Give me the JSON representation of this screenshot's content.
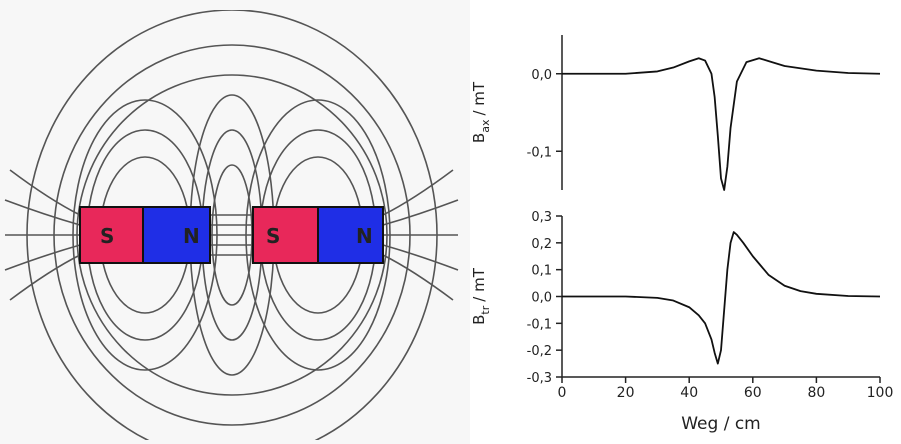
{
  "diagram": {
    "magnets": [
      {
        "south": "S",
        "north": "N"
      },
      {
        "south": "S",
        "north": "N"
      }
    ]
  },
  "chart_data": [
    {
      "type": "line",
      "ylabel": {
        "symbol": "B",
        "subscript": "ax",
        "unit": "/ mT"
      },
      "xlim": [
        0,
        100
      ],
      "ylim": [
        -0.15,
        0.05
      ],
      "yticks": [
        {
          "value": 0,
          "label": "0,0"
        },
        {
          "value": -0.1,
          "label": "-0,1"
        }
      ],
      "x": [
        0,
        10,
        20,
        30,
        35,
        40,
        43,
        45,
        47,
        48,
        49,
        50,
        51,
        52,
        53,
        55,
        58,
        62,
        66,
        70,
        80,
        90,
        100
      ],
      "series": [
        {
          "color": "#111111",
          "values": [
            0,
            0,
            0,
            0.003,
            0.008,
            0.016,
            0.02,
            0.017,
            0.0,
            -0.03,
            -0.08,
            -0.135,
            -0.15,
            -0.12,
            -0.07,
            -0.01,
            0.015,
            0.02,
            0.015,
            0.01,
            0.004,
            0.001,
            0
          ]
        }
      ]
    },
    {
      "type": "line",
      "ylabel": {
        "symbol": "B",
        "subscript": "tr",
        "unit": "/ mT"
      },
      "xlabel": "Weg / cm",
      "xlim": [
        0,
        100
      ],
      "ylim": [
        -0.3,
        0.3
      ],
      "xticks": [
        0,
        20,
        40,
        60,
        80,
        100
      ],
      "yticks": [
        {
          "value": 0.3,
          "label": "0,3"
        },
        {
          "value": 0.2,
          "label": "0,2"
        },
        {
          "value": 0.1,
          "label": "0,1"
        },
        {
          "value": 0,
          "label": "0,0"
        },
        {
          "value": -0.1,
          "label": "-0,1"
        },
        {
          "value": -0.2,
          "label": "-0,2"
        },
        {
          "value": -0.3,
          "label": "-0,3"
        }
      ],
      "x": [
        0,
        10,
        20,
        30,
        35,
        40,
        43,
        45,
        47,
        48,
        49,
        50,
        51,
        52,
        53,
        54,
        55,
        57,
        60,
        65,
        70,
        75,
        80,
        90,
        100
      ],
      "series": [
        {
          "color": "#111111",
          "values": [
            0,
            0,
            0,
            -0.005,
            -0.015,
            -0.04,
            -0.07,
            -0.1,
            -0.16,
            -0.21,
            -0.25,
            -0.2,
            -0.05,
            0.1,
            0.2,
            0.24,
            0.23,
            0.2,
            0.15,
            0.08,
            0.04,
            0.02,
            0.01,
            0.002,
            0
          ]
        }
      ]
    }
  ]
}
